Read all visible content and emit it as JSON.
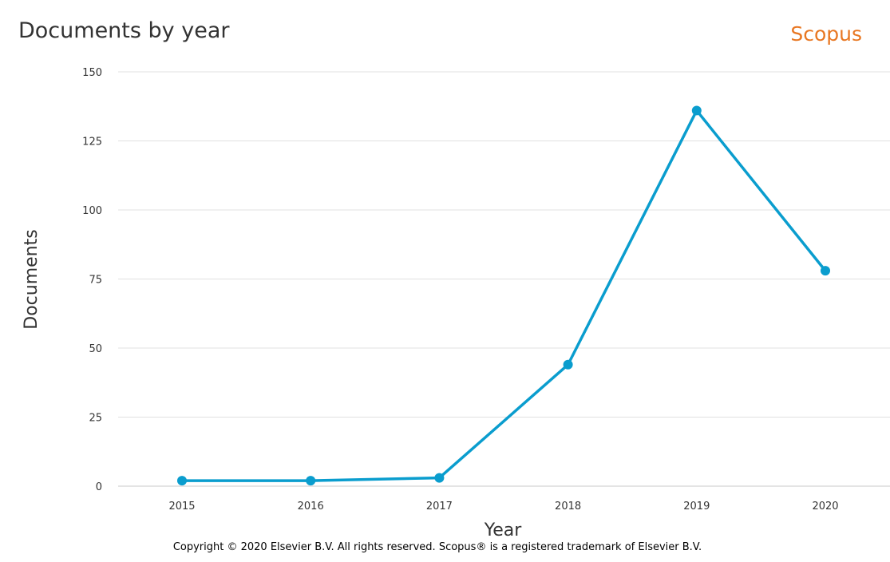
{
  "chart_data": {
    "type": "line",
    "title": "Documents by year",
    "brand": "Scopus",
    "xlabel": "Year",
    "ylabel": "Documents",
    "x": [
      "2015",
      "2016",
      "2017",
      "2018",
      "2019",
      "2020"
    ],
    "series": [
      {
        "values": [
          2,
          2,
          3,
          44,
          136,
          78
        ]
      }
    ],
    "ylim": [
      0,
      150
    ],
    "yticks": [
      0,
      25,
      50,
      75,
      100,
      125,
      150
    ],
    "grid": true,
    "legend": "none",
    "colors": {
      "line": "#0a9dce",
      "brand": "#e87722"
    }
  },
  "copyright": "Copyright © 2020 Elsevier B.V. All rights reserved. Scopus® is a registered trademark of Elsevier B.V."
}
